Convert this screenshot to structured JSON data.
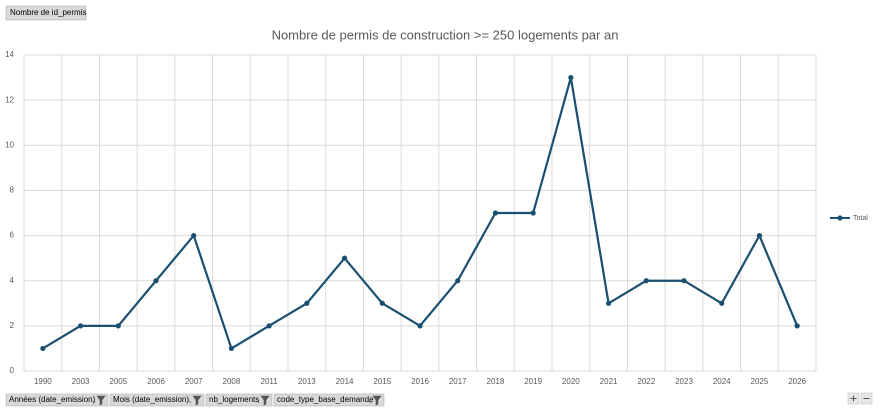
{
  "chart_data": {
    "type": "line",
    "title": "Nombre de permis de construction >= 250 logements par an",
    "categories": [
      "1990",
      "2003",
      "2005",
      "2006",
      "2007",
      "2008",
      "2011",
      "2013",
      "2014",
      "2015",
      "2016",
      "2017",
      "2018",
      "2019",
      "2020",
      "2021",
      "2022",
      "2023",
      "2024",
      "2025",
      "2026"
    ],
    "series": [
      {
        "name": "Total",
        "color": "#1b4f72",
        "values": [
          1,
          2,
          2,
          4,
          6,
          1,
          2,
          3,
          5,
          3,
          2,
          4,
          7,
          7,
          13,
          3,
          4,
          4,
          3,
          6,
          2
        ]
      }
    ],
    "ylim": [
      0,
      14
    ],
    "yticks": [
      0,
      2,
      4,
      6,
      8,
      10,
      12,
      14
    ],
    "grid": true,
    "legend": "right"
  },
  "pivot": {
    "value_field": "Nombre de id_permis",
    "axis_fields": [
      "Années (date_emission)",
      "Mois (date_emission)",
      "nb_logements",
      "code_type_base_demande"
    ]
  }
}
